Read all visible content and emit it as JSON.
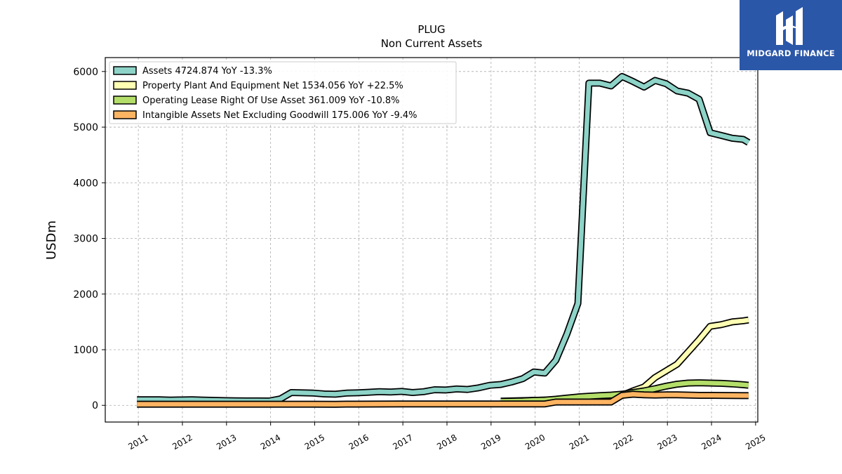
{
  "chart_data": {
    "type": "line",
    "title": "PLUG",
    "subtitle": "Non Current  Assets",
    "xlabel": "",
    "ylabel": "USDm",
    "xlim": [
      2010.25,
      2025.05
    ],
    "ylim": [
      -300,
      6250
    ],
    "x_ticks": [
      "2011",
      "2012",
      "2013",
      "2014",
      "2015",
      "2016",
      "2017",
      "2018",
      "2019",
      "2020",
      "2021",
      "2022",
      "2023",
      "2024",
      "2025"
    ],
    "y_ticks": [
      "0",
      "1000",
      "2000",
      "3000",
      "4000",
      "5000",
      "6000"
    ],
    "grid": true,
    "legend_position": "top-left",
    "series": [
      {
        "name": "Assets  4724.874 YoY -13.3%",
        "color": "#8dd3c7",
        "x": [
          2010.97,
          2011.47,
          2011.72,
          2011.97,
          2012.22,
          2012.47,
          2012.72,
          2012.97,
          2013.22,
          2013.47,
          2013.72,
          2013.97,
          2014.22,
          2014.47,
          2014.72,
          2014.97,
          2015.22,
          2015.47,
          2015.72,
          2015.97,
          2016.22,
          2016.47,
          2016.72,
          2016.97,
          2017.22,
          2017.47,
          2017.72,
          2017.97,
          2018.22,
          2018.47,
          2018.72,
          2018.97,
          2019.22,
          2019.47,
          2019.72,
          2019.97,
          2020.22,
          2020.47,
          2020.72,
          2020.97,
          2021.22,
          2021.47,
          2021.72,
          2021.97,
          2022.22,
          2022.47,
          2022.72,
          2022.97,
          2023.22,
          2023.47,
          2023.72,
          2023.97,
          2024.22,
          2024.47,
          2024.72,
          2024.84
        ],
        "y": [
          100,
          100,
          95,
          98,
          100,
          95,
          90,
          85,
          82,
          80,
          80,
          78,
          115,
          230,
          225,
          220,
          205,
          200,
          220,
          225,
          235,
          245,
          240,
          250,
          230,
          245,
          280,
          275,
          295,
          285,
          315,
          360,
          375,
          420,
          480,
          600,
          580,
          810,
          1280,
          1830,
          5790,
          5790,
          5740,
          5910,
          5820,
          5720,
          5840,
          5780,
          5650,
          5610,
          5500,
          4900,
          4850,
          4800,
          4780,
          4724
        ]
      },
      {
        "name": "Property Plant And Equipment Net  1534.056 YoY +22.5%",
        "color": "#ffffb3",
        "x": [
          2019.22,
          2019.47,
          2019.72,
          2019.97,
          2020.22,
          2020.47,
          2020.72,
          2020.97,
          2021.22,
          2021.47,
          2021.72,
          2021.97,
          2022.22,
          2022.47,
          2022.72,
          2022.97,
          2023.22,
          2023.47,
          2023.72,
          2023.97,
          2024.22,
          2024.47,
          2024.72,
          2024.84
        ],
        "y": [
          75,
          80,
          85,
          90,
          95,
          100,
          110,
          130,
          150,
          160,
          170,
          180,
          260,
          330,
          500,
          620,
          740,
          960,
          1180,
          1420,
          1450,
          1500,
          1520,
          1534
        ]
      },
      {
        "name": "Operating Lease Right Of Use Asset  361.009 YoY -10.8%",
        "color": "#b3de69",
        "x": [
          2019.22,
          2019.47,
          2019.72,
          2019.97,
          2020.22,
          2020.47,
          2020.72,
          2020.97,
          2021.22,
          2021.47,
          2021.72,
          2021.97,
          2022.22,
          2022.47,
          2022.72,
          2022.97,
          2023.22,
          2023.47,
          2023.72,
          2023.97,
          2024.22,
          2024.47,
          2024.72,
          2024.84
        ],
        "y": [
          72,
          75,
          80,
          90,
          95,
          110,
          130,
          150,
          165,
          175,
          185,
          200,
          230,
          260,
          300,
          345,
          380,
          400,
          405,
          400,
          395,
          385,
          370,
          361
        ]
      },
      {
        "name": "Intangible Assets Net Excluding Goodwill  175.006 YoY -9.4%",
        "color": "#fdb462",
        "x": [
          2010.97,
          2011.97,
          2012.97,
          2013.97,
          2014.97,
          2015.47,
          2015.72,
          2016.97,
          2017.97,
          2018.97,
          2019.97,
          2020.22,
          2020.47,
          2020.72,
          2020.97,
          2021.22,
          2021.47,
          2021.72,
          2021.97,
          2022.22,
          2022.47,
          2022.72,
          2022.97,
          2023.22,
          2023.47,
          2023.72,
          2023.97,
          2024.22,
          2024.47,
          2024.72,
          2024.84
        ],
        "y": [
          20,
          20,
          20,
          20,
          20,
          18,
          22,
          25,
          25,
          25,
          25,
          25,
          60,
          60,
          60,
          60,
          60,
          60,
          180,
          200,
          190,
          185,
          190,
          190,
          185,
          180,
          180,
          178,
          176,
          175,
          175
        ]
      }
    ]
  },
  "logo": {
    "brand_text": "MIDGARD FINANCE"
  }
}
